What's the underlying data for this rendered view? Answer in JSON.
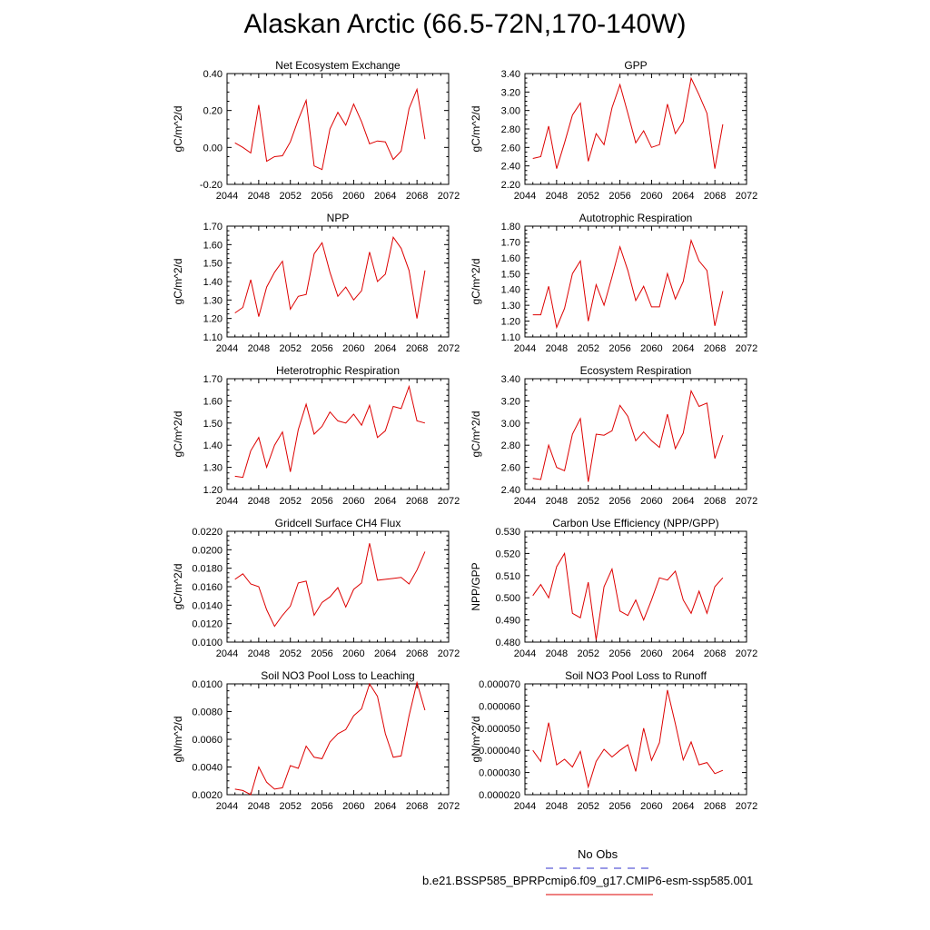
{
  "figure": {
    "title": "Alaskan Arctic (66.5-72N,170-140W)"
  },
  "legend": {
    "entries": [
      {
        "label": "No Obs",
        "color": "#3333cc",
        "style": "dashed"
      },
      {
        "label": "b.e21.BSSP585_BPRPcmip6.f09_g17.CMIP6-esm-ssp585.001",
        "color": "#dd0000",
        "style": "solid"
      }
    ]
  },
  "chart_data": [
    {
      "type": "line",
      "title": "Net Ecosystem Exchange",
      "ylabel": "gC/m^2/d",
      "xlabel": "",
      "xlim": [
        2044,
        2072
      ],
      "ylim": [
        -0.2,
        0.4
      ],
      "xticks": [
        "2044",
        "2048",
        "2052",
        "2056",
        "2060",
        "2064",
        "2068",
        "2072"
      ],
      "yticks": [
        "-0.20",
        "0.00",
        "0.20",
        "0.40"
      ],
      "x": [
        2045,
        2046,
        2047,
        2048,
        2049,
        2050,
        2051,
        2052,
        2053,
        2054,
        2055,
        2056,
        2057,
        2058,
        2059,
        2060,
        2061,
        2062,
        2063,
        2064,
        2065,
        2066,
        2067,
        2068,
        2069
      ],
      "series": [
        {
          "color": "#dd0000",
          "values": [
            0.025,
            0.0,
            -0.03,
            0.23,
            -0.075,
            -0.05,
            -0.045,
            0.03,
            0.15,
            0.255,
            -0.1,
            -0.12,
            0.1,
            0.19,
            0.12,
            0.235,
            0.14,
            0.02,
            0.035,
            0.03,
            -0.065,
            -0.02,
            0.21,
            0.315,
            0.045
          ]
        }
      ]
    },
    {
      "type": "line",
      "title": "GPP",
      "ylabel": "gC/m^2/d",
      "xlabel": "",
      "xlim": [
        2044,
        2072
      ],
      "ylim": [
        2.2,
        3.4
      ],
      "xticks": [
        "2044",
        "2048",
        "2052",
        "2056",
        "2060",
        "2064",
        "2068",
        "2072"
      ],
      "yticks": [
        "2.20",
        "2.40",
        "2.60",
        "2.80",
        "3.00",
        "3.20",
        "3.40"
      ],
      "x": [
        2045,
        2046,
        2047,
        2048,
        2049,
        2050,
        2051,
        2052,
        2053,
        2054,
        2055,
        2056,
        2057,
        2058,
        2059,
        2060,
        2061,
        2062,
        2063,
        2064,
        2065,
        2066,
        2067,
        2068,
        2069
      ],
      "series": [
        {
          "color": "#dd0000",
          "values": [
            2.48,
            2.5,
            2.83,
            2.37,
            2.65,
            2.95,
            3.08,
            2.45,
            2.75,
            2.63,
            3.03,
            3.28,
            2.97,
            2.65,
            2.78,
            2.6,
            2.63,
            3.07,
            2.75,
            2.88,
            3.35,
            3.17,
            2.97,
            2.37,
            2.85
          ]
        }
      ]
    },
    {
      "type": "line",
      "title": "NPP",
      "ylabel": "gC/m^2/d",
      "xlabel": "",
      "xlim": [
        2044,
        2072
      ],
      "ylim": [
        1.1,
        1.7
      ],
      "xticks": [
        "2044",
        "2048",
        "2052",
        "2056",
        "2060",
        "2064",
        "2068",
        "2072"
      ],
      "yticks": [
        "1.10",
        "1.20",
        "1.30",
        "1.40",
        "1.50",
        "1.60",
        "1.70"
      ],
      "x": [
        2045,
        2046,
        2047,
        2048,
        2049,
        2050,
        2051,
        2052,
        2053,
        2054,
        2055,
        2056,
        2057,
        2058,
        2059,
        2060,
        2061,
        2062,
        2063,
        2064,
        2065,
        2066,
        2067,
        2068,
        2069
      ],
      "series": [
        {
          "color": "#dd0000",
          "values": [
            1.23,
            1.26,
            1.41,
            1.21,
            1.37,
            1.45,
            1.51,
            1.25,
            1.32,
            1.33,
            1.55,
            1.61,
            1.45,
            1.32,
            1.37,
            1.3,
            1.35,
            1.56,
            1.4,
            1.44,
            1.64,
            1.58,
            1.46,
            1.2,
            1.46
          ]
        }
      ]
    },
    {
      "type": "line",
      "title": "Autotrophic Respiration",
      "ylabel": "gC/m^2/d",
      "xlabel": "",
      "xlim": [
        2044,
        2072
      ],
      "ylim": [
        1.1,
        1.8
      ],
      "xticks": [
        "2044",
        "2048",
        "2052",
        "2056",
        "2060",
        "2064",
        "2068",
        "2072"
      ],
      "yticks": [
        "1.10",
        "1.20",
        "1.30",
        "1.40",
        "1.50",
        "1.60",
        "1.70",
        "1.80"
      ],
      "x": [
        2045,
        2046,
        2047,
        2048,
        2049,
        2050,
        2051,
        2052,
        2053,
        2054,
        2055,
        2056,
        2057,
        2058,
        2059,
        2060,
        2061,
        2062,
        2063,
        2064,
        2065,
        2066,
        2067,
        2068,
        2069
      ],
      "series": [
        {
          "color": "#dd0000",
          "values": [
            1.24,
            1.24,
            1.42,
            1.16,
            1.28,
            1.5,
            1.58,
            1.2,
            1.43,
            1.3,
            1.48,
            1.67,
            1.52,
            1.33,
            1.42,
            1.29,
            1.29,
            1.5,
            1.34,
            1.45,
            1.71,
            1.58,
            1.52,
            1.17,
            1.39
          ]
        }
      ]
    },
    {
      "type": "line",
      "title": "Heterotrophic Respiration",
      "ylabel": "gC/m^2/d",
      "xlabel": "",
      "xlim": [
        2044,
        2072
      ],
      "ylim": [
        1.2,
        1.7
      ],
      "xticks": [
        "2044",
        "2048",
        "2052",
        "2056",
        "2060",
        "2064",
        "2068",
        "2072"
      ],
      "yticks": [
        "1.20",
        "1.30",
        "1.40",
        "1.50",
        "1.60",
        "1.70"
      ],
      "x": [
        2045,
        2046,
        2047,
        2048,
        2049,
        2050,
        2051,
        2052,
        2053,
        2054,
        2055,
        2056,
        2057,
        2058,
        2059,
        2060,
        2061,
        2062,
        2063,
        2064,
        2065,
        2066,
        2067,
        2068,
        2069
      ],
      "series": [
        {
          "color": "#dd0000",
          "values": [
            1.26,
            1.255,
            1.375,
            1.435,
            1.3,
            1.4,
            1.46,
            1.28,
            1.47,
            1.585,
            1.45,
            1.485,
            1.55,
            1.51,
            1.5,
            1.54,
            1.49,
            1.58,
            1.435,
            1.465,
            1.575,
            1.565,
            1.665,
            1.51,
            1.5
          ]
        }
      ]
    },
    {
      "type": "line",
      "title": "Ecosystem Respiration",
      "ylabel": "gC/m^2/d",
      "xlabel": "",
      "xlim": [
        2044,
        2072
      ],
      "ylim": [
        2.4,
        3.4
      ],
      "xticks": [
        "2044",
        "2048",
        "2052",
        "2056",
        "2060",
        "2064",
        "2068",
        "2072"
      ],
      "yticks": [
        "2.40",
        "2.60",
        "2.80",
        "3.00",
        "3.20",
        "3.40"
      ],
      "x": [
        2045,
        2046,
        2047,
        2048,
        2049,
        2050,
        2051,
        2052,
        2053,
        2054,
        2055,
        2056,
        2057,
        2058,
        2059,
        2060,
        2061,
        2062,
        2063,
        2064,
        2065,
        2066,
        2067,
        2068,
        2069
      ],
      "series": [
        {
          "color": "#dd0000",
          "values": [
            2.5,
            2.49,
            2.8,
            2.6,
            2.57,
            2.9,
            3.04,
            2.47,
            2.9,
            2.89,
            2.93,
            3.16,
            3.06,
            2.84,
            2.92,
            2.84,
            2.78,
            3.08,
            2.77,
            2.91,
            3.29,
            3.15,
            3.18,
            2.68,
            2.89
          ]
        }
      ]
    },
    {
      "type": "line",
      "title": "Gridcell Surface CH4 Flux",
      "ylabel": "gC/m^2/d",
      "xlabel": "",
      "xlim": [
        2044,
        2072
      ],
      "ylim": [
        0.01,
        0.022
      ],
      "xticks": [
        "2044",
        "2048",
        "2052",
        "2056",
        "2060",
        "2064",
        "2068",
        "2072"
      ],
      "yticks": [
        "0.0100",
        "0.0120",
        "0.0140",
        "0.0160",
        "0.0180",
        "0.0200",
        "0.0220"
      ],
      "x": [
        2045,
        2046,
        2047,
        2048,
        2049,
        2050,
        2051,
        2052,
        2053,
        2054,
        2055,
        2056,
        2057,
        2058,
        2059,
        2060,
        2061,
        2062,
        2063,
        2064,
        2065,
        2066,
        2067,
        2068,
        2069
      ],
      "series": [
        {
          "color": "#dd0000",
          "values": [
            0.0168,
            0.0174,
            0.0163,
            0.016,
            0.0135,
            0.0117,
            0.0129,
            0.0139,
            0.0164,
            0.0166,
            0.0129,
            0.0143,
            0.0149,
            0.0159,
            0.0138,
            0.0157,
            0.0164,
            0.0207,
            0.0167,
            0.0168,
            0.0169,
            0.017,
            0.0163,
            0.0178,
            0.0198
          ]
        }
      ]
    },
    {
      "type": "line",
      "title": "Carbon Use Efficiency (NPP/GPP)",
      "ylabel": "NPP/GPP",
      "xlabel": "",
      "xlim": [
        2044,
        2072
      ],
      "ylim": [
        0.48,
        0.53
      ],
      "xticks": [
        "2044",
        "2048",
        "2052",
        "2056",
        "2060",
        "2064",
        "2068",
        "2072"
      ],
      "yticks": [
        "0.480",
        "0.490",
        "0.500",
        "0.510",
        "0.520",
        "0.530"
      ],
      "x": [
        2045,
        2046,
        2047,
        2048,
        2049,
        2050,
        2051,
        2052,
        2053,
        2054,
        2055,
        2056,
        2057,
        2058,
        2059,
        2060,
        2061,
        2062,
        2063,
        2064,
        2065,
        2066,
        2067,
        2068,
        2069
      ],
      "series": [
        {
          "color": "#dd0000",
          "values": [
            0.501,
            0.506,
            0.5,
            0.514,
            0.52,
            0.493,
            0.491,
            0.507,
            0.481,
            0.505,
            0.513,
            0.494,
            0.492,
            0.499,
            0.49,
            0.499,
            0.509,
            0.508,
            0.512,
            0.499,
            0.493,
            0.503,
            0.493,
            0.505,
            0.509
          ]
        }
      ]
    },
    {
      "type": "line",
      "title": "Soil NO3 Pool Loss to Leaching",
      "ylabel": "gN/m^2/d",
      "xlabel": "",
      "xlim": [
        2044,
        2072
      ],
      "ylim": [
        0.002,
        0.01
      ],
      "xticks": [
        "2044",
        "2048",
        "2052",
        "2056",
        "2060",
        "2064",
        "2068",
        "2072"
      ],
      "yticks": [
        "0.0020",
        "0.0040",
        "0.0060",
        "0.0080",
        "0.0100"
      ],
      "x": [
        2045,
        2046,
        2047,
        2048,
        2049,
        2050,
        2051,
        2052,
        2053,
        2054,
        2055,
        2056,
        2057,
        2058,
        2059,
        2060,
        2061,
        2062,
        2063,
        2064,
        2065,
        2066,
        2067,
        2068,
        2069
      ],
      "series": [
        {
          "color": "#dd0000",
          "values": [
            0.0024,
            0.0023,
            0.002,
            0.004,
            0.0029,
            0.0024,
            0.0025,
            0.0041,
            0.0039,
            0.0055,
            0.0047,
            0.0046,
            0.0058,
            0.0064,
            0.0067,
            0.0077,
            0.0082,
            0.01,
            0.0091,
            0.0064,
            0.0047,
            0.0048,
            0.0077,
            0.0101,
            0.0081
          ]
        }
      ]
    },
    {
      "type": "line",
      "title": "Soil NO3 Pool Loss to Runoff",
      "ylabel": "gN/m^2/d",
      "xlabel": "",
      "xlim": [
        2044,
        2072
      ],
      "ylim": [
        2e-05,
        7e-05
      ],
      "xticks": [
        "2044",
        "2048",
        "2052",
        "2056",
        "2060",
        "2064",
        "2068",
        "2072"
      ],
      "yticks": [
        "0.000020",
        "0.000030",
        "0.000040",
        "0.000050",
        "0.000060",
        "0.000070"
      ],
      "x": [
        2045,
        2046,
        2047,
        2048,
        2049,
        2050,
        2051,
        2052,
        2053,
        2054,
        2055,
        2056,
        2057,
        2058,
        2059,
        2060,
        2061,
        2062,
        2063,
        2064,
        2065,
        2066,
        2067,
        2068,
        2069
      ],
      "series": [
        {
          "color": "#dd0000",
          "values": [
            4e-05,
            3.5e-05,
            5.25e-05,
            3.35e-05,
            3.6e-05,
            3.25e-05,
            3.95e-05,
            2.35e-05,
            3.5e-05,
            4.05e-05,
            3.7e-05,
            4e-05,
            4.25e-05,
            3.05e-05,
            5e-05,
            3.55e-05,
            4.35e-05,
            6.72e-05,
            5.2e-05,
            3.57e-05,
            4.38e-05,
            3.35e-05,
            3.45e-05,
            2.95e-05,
            3.1e-05
          ]
        }
      ]
    }
  ]
}
